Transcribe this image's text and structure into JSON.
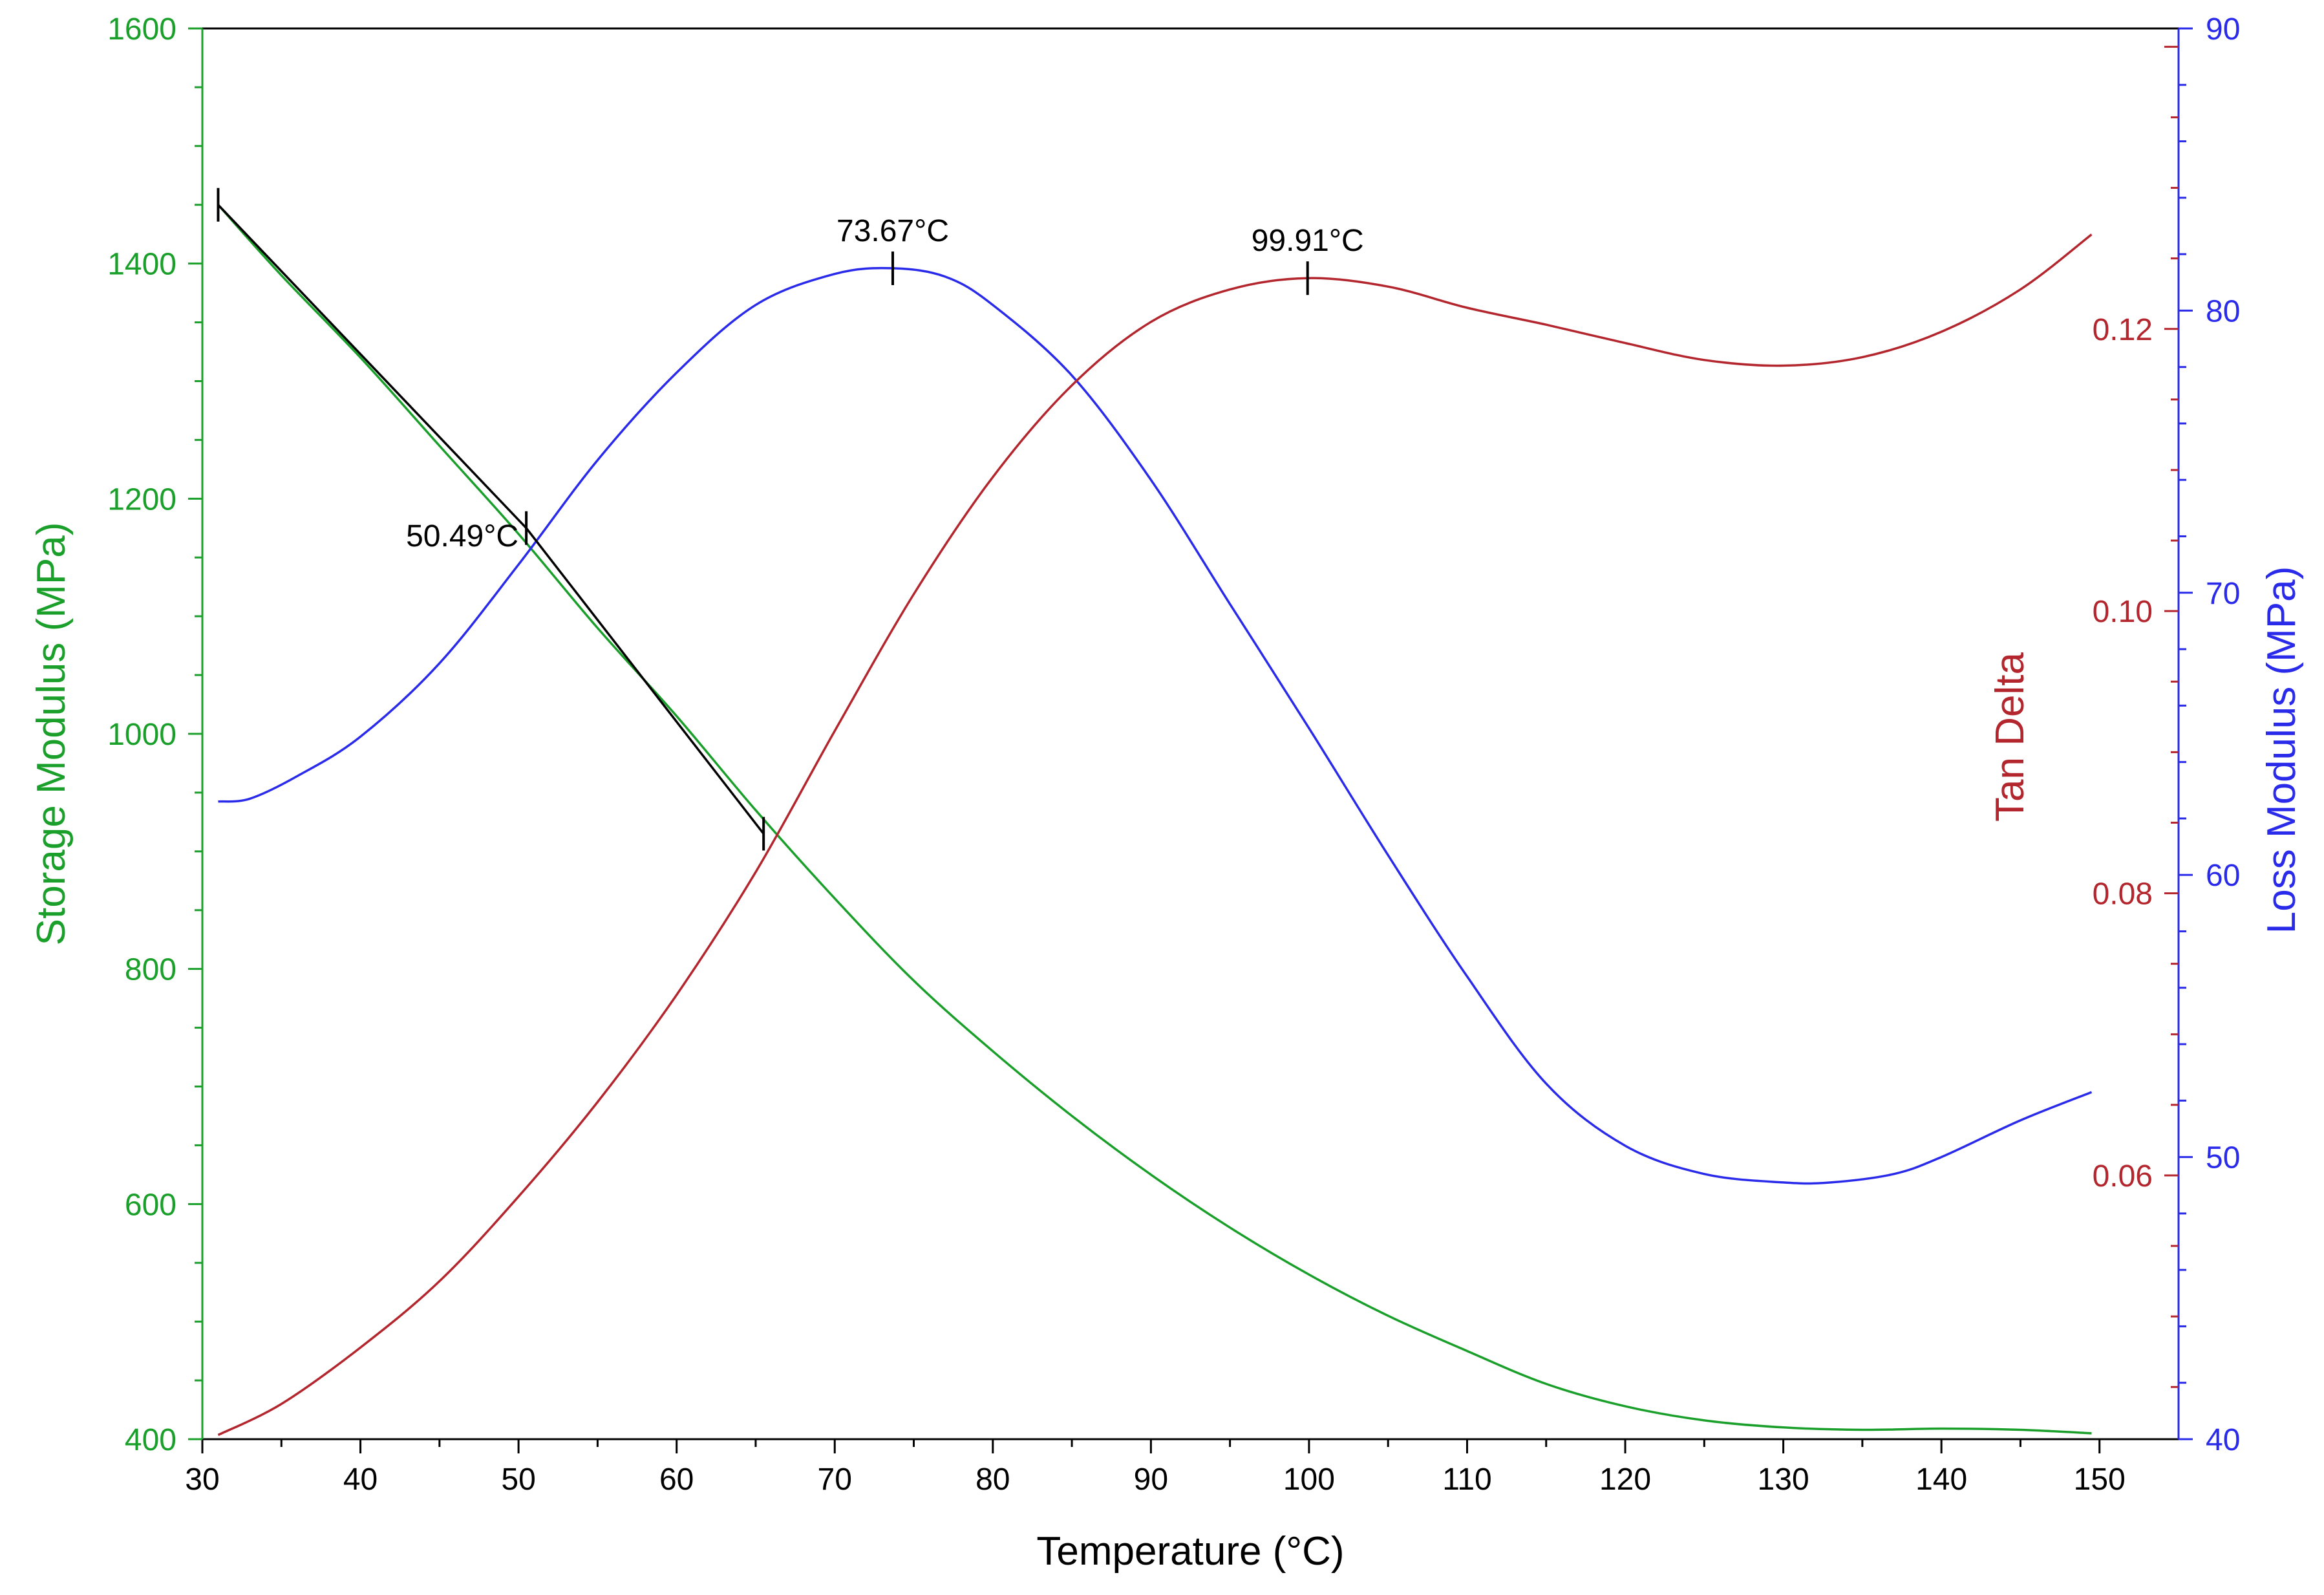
{
  "chart_data": {
    "type": "line",
    "xlabel": "Temperature (°C)",
    "xlim": [
      30,
      155
    ],
    "xticks": [
      30,
      40,
      50,
      60,
      70,
      80,
      90,
      100,
      110,
      120,
      130,
      140,
      150
    ],
    "axes": {
      "left": {
        "label": "Storage Modulus (MPa)",
        "color": "#1aa02a",
        "lim": [
          400,
          1600
        ],
        "ticks": [
          400,
          600,
          800,
          1000,
          1200,
          1400,
          1600
        ],
        "tick_labels": [
          "400",
          "600",
          "800",
          "1000",
          "1200",
          "1400",
          "1600"
        ]
      },
      "right_inner": {
        "label": "Tan Delta",
        "color": "#b3262e",
        "lim": [
          0.0413,
          0.1413
        ],
        "ticks": [
          0.06,
          0.08,
          0.1,
          0.12
        ],
        "tick_labels": [
          "0.06",
          "0.08",
          "0.10",
          "0.12"
        ]
      },
      "right_outer": {
        "label": "Loss Modulus (MPa)",
        "color": "#2a2aeb",
        "lim": [
          40,
          90
        ],
        "ticks": [
          40,
          50,
          60,
          70,
          80,
          90
        ],
        "tick_labels": [
          "40",
          "50",
          "60",
          "70",
          "80",
          "90"
        ]
      }
    },
    "series": [
      {
        "name": "Storage Modulus",
        "axis": "left",
        "color": "#1aa02a",
        "x": [
          31,
          35,
          40,
          45,
          50,
          55,
          60,
          65,
          70,
          75,
          80,
          85,
          90,
          95,
          100,
          105,
          110,
          115,
          120,
          125,
          130,
          135,
          140,
          145,
          149.5
        ],
        "y": [
          1450,
          1390,
          1320,
          1245,
          1170,
          1090,
          1015,
          935,
          860,
          790,
          730,
          675,
          625,
          580,
          540,
          505,
          475,
          447,
          428,
          416,
          410,
          408,
          409,
          408,
          405
        ]
      },
      {
        "name": "Loss Modulus",
        "axis": "right_outer",
        "color": "#2a2aeb",
        "x": [
          31,
          33,
          36,
          40,
          45,
          50,
          55,
          60,
          65,
          70,
          73.67,
          77,
          80,
          85,
          90,
          95,
          100,
          105,
          110,
          115,
          120,
          125,
          130,
          133,
          137,
          140,
          145,
          149.5
        ],
        "y": [
          62.6,
          62.7,
          63.5,
          64.9,
          67.5,
          71.0,
          74.7,
          77.8,
          80.2,
          81.3,
          81.5,
          81.2,
          80.2,
          77.7,
          74.0,
          69.6,
          65.2,
          60.7,
          56.4,
          52.6,
          50.4,
          49.4,
          49.1,
          49.1,
          49.4,
          50.0,
          51.3,
          52.3
        ]
      },
      {
        "name": "Tan Delta",
        "axis": "right_inner",
        "color": "#b3262e",
        "x": [
          31,
          35,
          40,
          45,
          50,
          55,
          60,
          65,
          70,
          75,
          80,
          85,
          90,
          95,
          99.91,
          105,
          110,
          115,
          120,
          125,
          130,
          135,
          140,
          145,
          149.5
        ],
        "y": [
          0.0416,
          0.0438,
          0.0478,
          0.0525,
          0.0585,
          0.0652,
          0.0728,
          0.0815,
          0.0915,
          0.1012,
          0.1095,
          0.116,
          0.1205,
          0.1228,
          0.1236,
          0.123,
          0.1215,
          0.1203,
          0.119,
          0.1178,
          0.1174,
          0.118,
          0.1198,
          0.1228,
          0.1267
        ]
      }
    ],
    "onset_line": {
      "color": "#000000",
      "axis": "left",
      "x": [
        31,
        50.49,
        65.5
      ],
      "y": [
        1450,
        1175,
        915
      ]
    },
    "annotations": [
      {
        "name": "storage-onset-start-marker",
        "x": 31,
        "axis": "left",
        "y": 1450,
        "label": ""
      },
      {
        "name": "storage-onset-marker",
        "x": 50.49,
        "axis": "left",
        "y": 1175,
        "label": "50.49°C"
      },
      {
        "name": "storage-onset-end-marker",
        "x": 65.5,
        "axis": "left",
        "y": 915,
        "label": ""
      },
      {
        "name": "loss-peak-marker",
        "x": 73.67,
        "axis": "right_outer",
        "y": 81.5,
        "label": "73.67°C"
      },
      {
        "name": "tan-delta-peak-marker",
        "x": 99.91,
        "axis": "right_inner",
        "y": 0.1236,
        "label": "99.91°C"
      }
    ],
    "grid": false
  }
}
